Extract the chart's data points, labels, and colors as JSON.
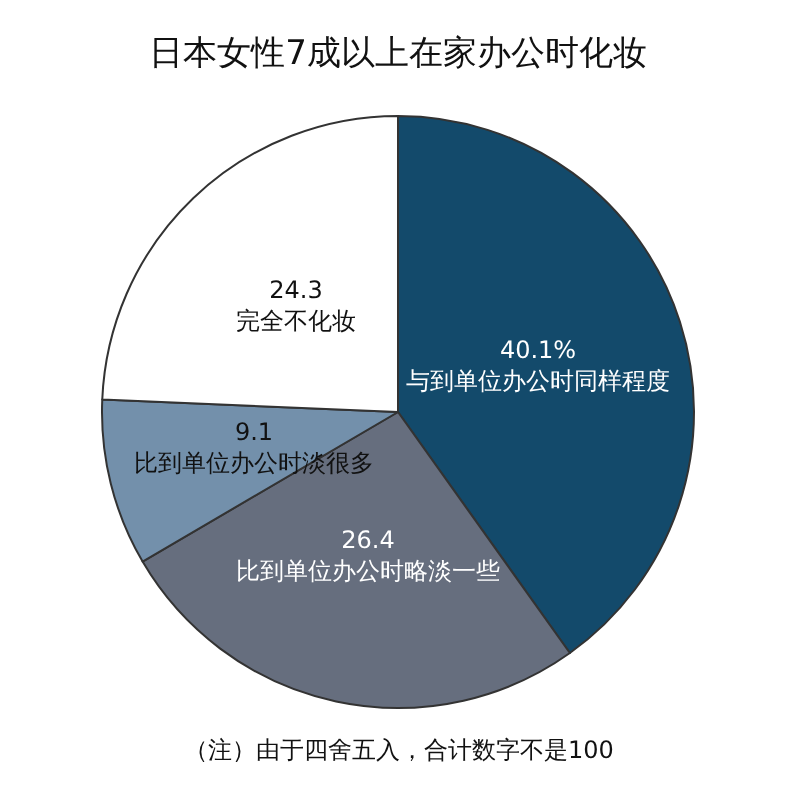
{
  "chart_data": {
    "type": "pie",
    "title": "日本女性7成以上在家办公时化妆",
    "categories": [
      "与到单位办公时同样程度",
      "比到单位办公时略淡一些",
      "比到单位办公时淡很多",
      "完全不化妆"
    ],
    "values": [
      40.1,
      26.4,
      9.1,
      24.3
    ],
    "value_labels": [
      "40.1%",
      "26.4",
      "9.1",
      "24.3"
    ],
    "colors": [
      "#134a6b",
      "#666e7e",
      "#7390ab",
      "#ffffff"
    ],
    "legend": false,
    "annotations": [
      "（注）由于四舍五入，合计数字不是100"
    ]
  }
}
